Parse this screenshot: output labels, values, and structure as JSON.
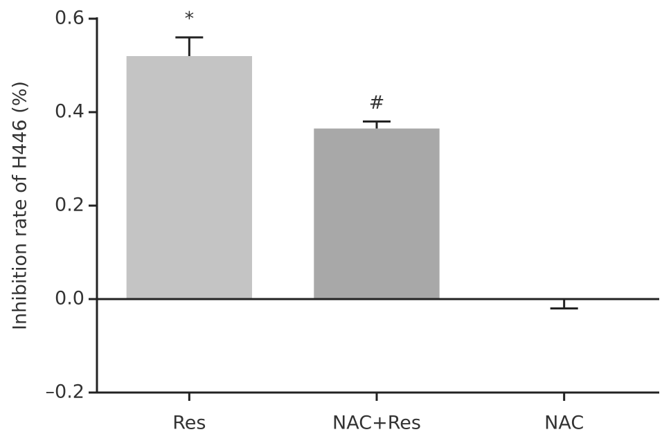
{
  "chart_data": {
    "type": "bar",
    "ylabel": "Inhibition rate of H446 (%)",
    "categories": [
      "Res",
      "NAC+Res",
      "NAC"
    ],
    "values": [
      0.52,
      0.365,
      0
    ],
    "errors": [
      0.04,
      0.015,
      0.02
    ],
    "bar_labels": [
      "*",
      "#",
      null
    ],
    "colors": [
      "#c4c4c4",
      "#a8a8a8",
      "#a8a8a8"
    ],
    "ylim": [
      -0.2,
      0.6
    ],
    "yticks": [
      {
        "value": -0.2,
        "label": "–0.2"
      },
      {
        "value": 0,
        "label": "0.0"
      },
      0.2,
      0.4,
      0.6
    ],
    "grid": false
  }
}
